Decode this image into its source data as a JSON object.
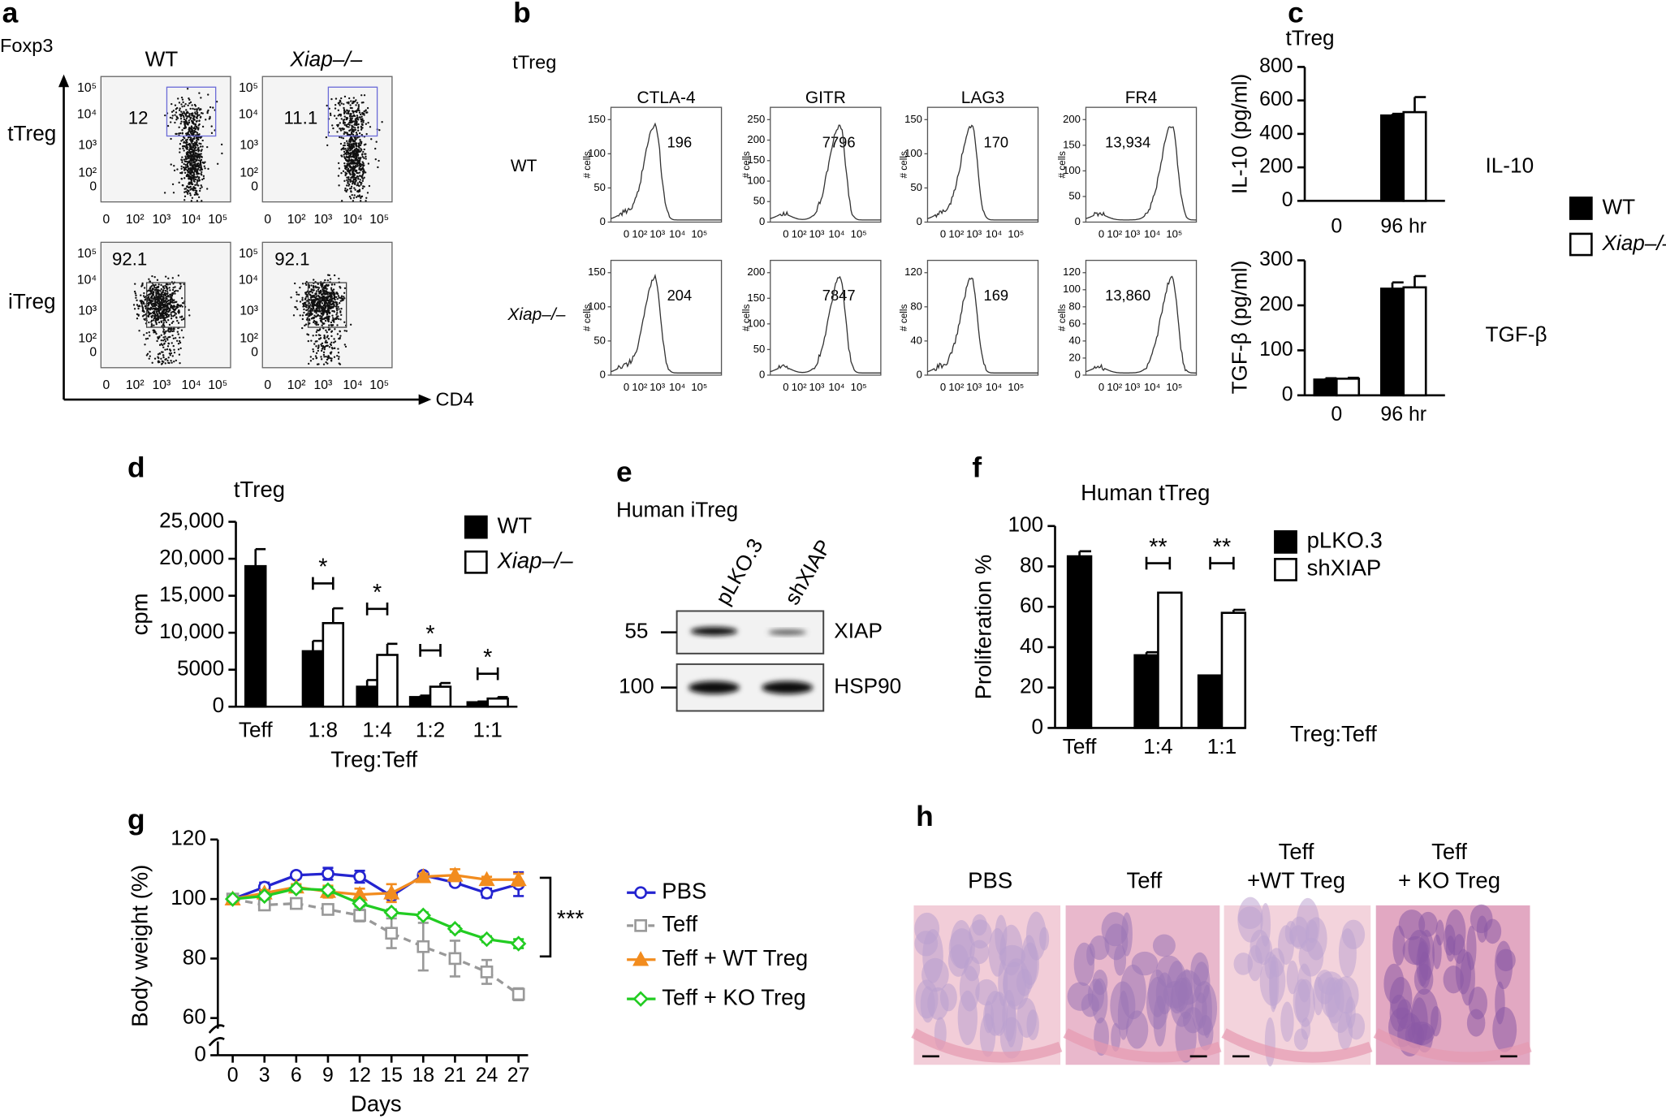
{
  "panel_labels": [
    "a",
    "b",
    "c",
    "d",
    "e",
    "f",
    "g",
    "h"
  ],
  "panel_a": {
    "y_axis_label": "Foxp3",
    "x_axis_label": "CD4",
    "columns": [
      "WT",
      "Xiap–/–"
    ],
    "rows": [
      "tTreg",
      "iTreg"
    ],
    "gate_values": [
      [
        12,
        11.1
      ],
      [
        92.1,
        92.1
      ]
    ],
    "yticks": [
      "10⁵",
      "10⁴",
      "10³",
      "10²",
      "0"
    ],
    "xticks": [
      "0",
      "10²",
      "10³",
      "10⁴",
      "10⁵"
    ]
  },
  "panel_b": {
    "title": "tTreg",
    "y_axis_label": "# cells",
    "xticks": [
      "0",
      "10²",
      "10³",
      "10⁴",
      "10⁵"
    ],
    "columns": [
      "CTLA-4",
      "GITR",
      "LAG3",
      "FR4"
    ],
    "rows": [
      {
        "label": "WT",
        "values": [
          196,
          7796,
          170,
          "13,934"
        ],
        "yticks": [
          [
            0,
            50,
            100,
            150
          ],
          [
            0,
            50,
            100,
            150,
            200,
            250
          ],
          [
            0,
            50,
            100,
            150
          ],
          [
            0,
            50,
            100,
            150,
            200
          ]
        ]
      },
      {
        "label": "Xiap–/–",
        "values": [
          204,
          7847,
          169,
          "13,860"
        ],
        "yticks": [
          [
            0,
            50,
            100,
            150
          ],
          [
            0,
            50,
            100,
            150,
            200
          ],
          [
            0,
            40,
            80,
            120
          ],
          [
            0,
            20,
            40,
            60,
            80,
            100,
            120
          ]
        ]
      }
    ]
  },
  "panel_e": {
    "title": "Human iTreg",
    "lanes": [
      "pLKO.3",
      "shXIAP"
    ],
    "markers": [
      55,
      100
    ],
    "bands": [
      "XIAP",
      "HSP90"
    ]
  },
  "panel_h": {
    "groups": [
      [
        "PBS"
      ],
      [
        "Teff"
      ],
      [
        "Teff",
        "+WT Treg"
      ],
      [
        "Teff",
        "+ KO Treg"
      ]
    ]
  },
  "chart_data": [
    {
      "type": "bar",
      "title": "tTreg",
      "side_label": "IL-10",
      "ylabel": "IL-10 (pg/ml)",
      "categories": [
        "0",
        "96 hr"
      ],
      "series": [
        {
          "name": "WT",
          "color": "#000000",
          "values": [
            0,
            510
          ],
          "errors": [
            0,
            10
          ]
        },
        {
          "name": "Xiap–/–",
          "color": "#ffffff",
          "values": [
            0,
            530
          ],
          "errors": [
            0,
            90
          ]
        }
      ],
      "ylim": [
        0,
        800
      ],
      "yticks": [
        0,
        200,
        400,
        600,
        800
      ]
    },
    {
      "type": "bar",
      "side_label": "TGF-β",
      "ylabel": "TGF-β (pg/ml)",
      "categories": [
        "0",
        "96 hr"
      ],
      "series": [
        {
          "color": "#000000",
          "values": [
            35,
            237
          ],
          "errors": [
            3,
            14
          ]
        },
        {
          "color": "#ffffff",
          "values": [
            37,
            240
          ],
          "errors": [
            2,
            25
          ]
        }
      ],
      "ylim": [
        0,
        300
      ],
      "yticks": [
        0,
        100,
        200,
        300
      ]
    },
    {
      "type": "bar",
      "title": "tTreg",
      "ylabel": "cpm",
      "xlabel": "Treg:Teff",
      "categories": [
        "Teff",
        "1:8",
        "1:4",
        "1:2",
        "1:1"
      ],
      "series": [
        {
          "name": "WT",
          "color": "#000000",
          "values": [
            19000,
            7500,
            2700,
            1300,
            600
          ],
          "errors": [
            2300,
            1400,
            900,
            200,
            100
          ]
        },
        {
          "name": "Xiap–/–",
          "color": "#ffffff",
          "values": [
            null,
            11300,
            7000,
            2700,
            1100
          ],
          "errors": [
            null,
            2000,
            1500,
            500,
            200
          ]
        }
      ],
      "ylim": [
        0,
        25000
      ],
      "yticks": [
        0,
        5000,
        {
          "value": 10000,
          "label": "10,000"
        },
        {
          "value": 15000,
          "label": "15,000"
        },
        {
          "value": 20000,
          "label": "20,000"
        },
        {
          "value": 25000,
          "label": "25,000"
        }
      ],
      "annotations": [
        "*",
        "*",
        "*",
        "*"
      ]
    },
    {
      "type": "bar",
      "title": "Human tTreg",
      "ylabel": "Proliferation %",
      "xlabel": "Treg:Teff",
      "categories": [
        "Teff",
        "1:4",
        "1:1"
      ],
      "series": [
        {
          "name": "pLKO.3",
          "color": "#000000",
          "values": [
            85,
            36,
            26
          ],
          "errors": [
            2.5,
            1.5,
            0
          ]
        },
        {
          "name": "shXIAP",
          "color": "#ffffff",
          "values": [
            null,
            67,
            57
          ],
          "errors": [
            null,
            0,
            1.5
          ]
        }
      ],
      "ylim": [
        0,
        100
      ],
      "yticks": [
        0,
        20,
        40,
        60,
        80,
        100
      ],
      "annotations": [
        "**",
        "**"
      ]
    },
    {
      "type": "line",
      "ylabel": "Body weight (%)",
      "xlabel": "Days",
      "x": [
        0,
        3,
        6,
        9,
        12,
        15,
        18,
        21,
        24,
        27
      ],
      "xlim": [
        0,
        27
      ],
      "xticks": [
        0,
        3,
        6,
        9,
        12,
        15,
        18,
        21,
        24,
        27
      ],
      "ylim": [
        0,
        120
      ],
      "yticks": [
        0,
        60,
        80,
        100,
        120
      ],
      "y_break": [
        0,
        60
      ],
      "series": [
        {
          "name": "PBS",
          "color": "#2424d0",
          "marker": "circle",
          "dashed": false,
          "values": [
            100,
            104,
            108,
            108.5,
            107.5,
            101,
            108,
            105.5,
            102,
            105
          ],
          "errors": [
            0,
            1.5,
            1,
            2,
            2,
            1,
            1,
            1,
            1.5,
            4
          ]
        },
        {
          "name": "Teff",
          "color": "#999999",
          "marker": "square",
          "dashed": true,
          "values": [
            100,
            98,
            98.5,
            96.5,
            94.5,
            88.5,
            84,
            80,
            75.5,
            68
          ],
          "errors": [
            0,
            1,
            1,
            1,
            2,
            5,
            8,
            6,
            4,
            2
          ]
        },
        {
          "name": "Teff + WT Treg",
          "color": "#f28c1e",
          "marker": "triangle",
          "dashed": false,
          "values": [
            100,
            102,
            104,
            102.5,
            101.5,
            102,
            107.5,
            108,
            106.5,
            106.5
          ],
          "errors": [
            0,
            1,
            1,
            2,
            2,
            3,
            1,
            2,
            1,
            2
          ]
        },
        {
          "name": "Teff + KO Treg",
          "color": "#22cc22",
          "marker": "diamond",
          "dashed": false,
          "values": [
            100,
            101,
            103.5,
            103,
            98.5,
            95.5,
            94.5,
            90,
            86.5,
            85
          ],
          "errors": [
            0,
            1,
            1,
            1,
            1,
            1,
            1,
            1,
            1,
            1.5
          ]
        }
      ],
      "annotations": [
        "***"
      ]
    }
  ]
}
